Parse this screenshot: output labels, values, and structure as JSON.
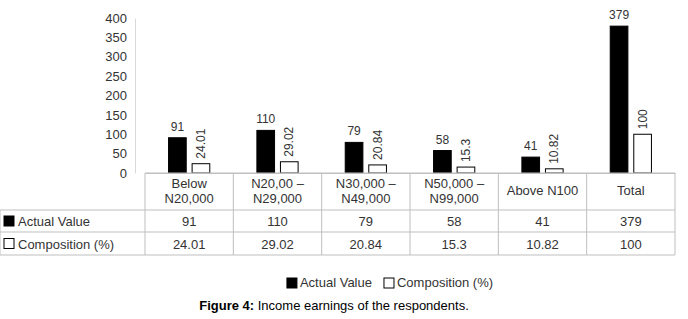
{
  "chart_data": {
    "type": "bar",
    "title": "Figure 4: Income earnings of the respondents.",
    "categories": [
      "Below N20,000",
      "N20,00 – N29,000",
      "N30,000 – N49,000",
      "N50,000 – N99,000",
      "Above N100",
      "Total"
    ],
    "series": [
      {
        "name": "Actual Value",
        "color": "#000000",
        "values": [
          91,
          110,
          79,
          58,
          41,
          379
        ]
      },
      {
        "name": "Composition (%)",
        "color": "#ffffff",
        "values": [
          24.01,
          29.02,
          20.84,
          15.3,
          10.82,
          100
        ]
      }
    ],
    "ylim": [
      0,
      400
    ],
    "yticks": [
      0,
      50,
      100,
      150,
      200,
      250,
      300,
      350,
      400
    ],
    "grid": false,
    "data_labels": true,
    "legend": "bottom"
  }
}
